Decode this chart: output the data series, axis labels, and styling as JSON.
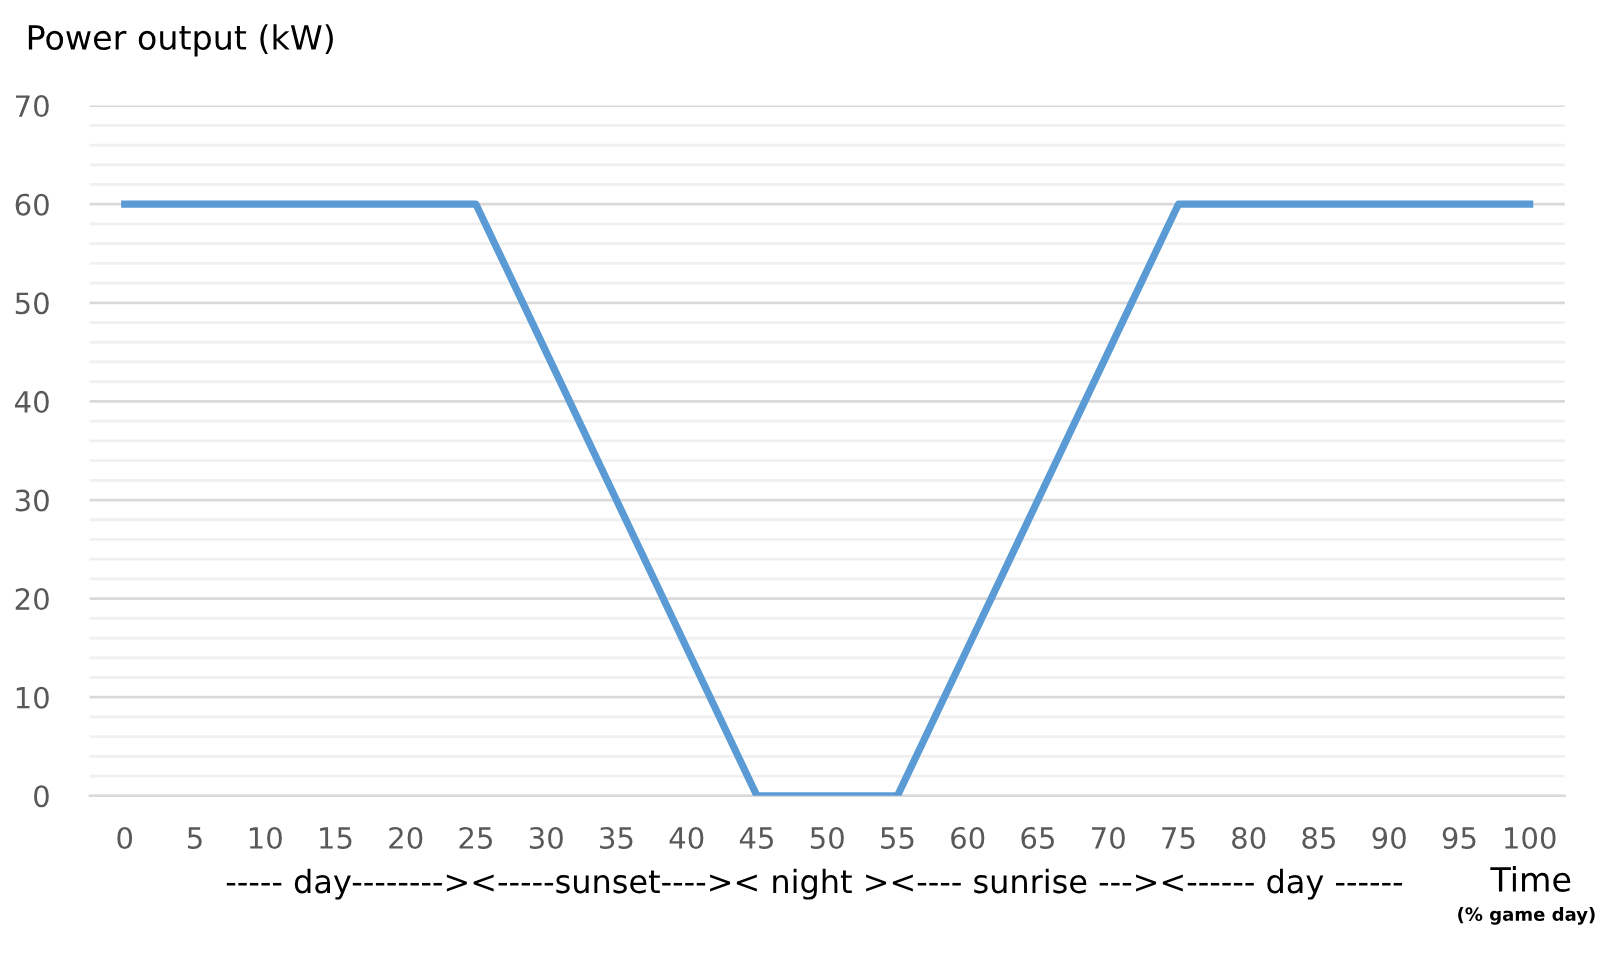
{
  "chart_data": {
    "type": "line",
    "title": "Power output (kW)",
    "xlabel": "Time",
    "annotations": [
      "----- day--------><-----sunset---->< night ><---- sunrise ---><------ day ------",
      "(% game day)"
    ],
    "categories": [
      "0",
      "5",
      "10",
      "15",
      "20",
      "25",
      "30",
      "35",
      "40",
      "45",
      "50",
      "55",
      "60",
      "65",
      "70",
      "75",
      "80",
      "85",
      "90",
      "95",
      "100"
    ],
    "series": [
      {
        "color": "#5b9bd5",
        "values": [
          60,
          60,
          60,
          60,
          60,
          60,
          45,
          30,
          15,
          0,
          0,
          0,
          15,
          30,
          45,
          60,
          60,
          60,
          60,
          60,
          60
        ]
      }
    ],
    "ylim": [
      0,
      70
    ],
    "yticks": [
      0,
      {
        "value": 2,
        "label": null
      },
      {
        "value": 4,
        "label": null
      },
      {
        "value": 6,
        "label": null
      },
      {
        "value": 8,
        "label": null
      },
      10,
      {
        "value": 12,
        "label": null
      },
      {
        "value": 14,
        "label": null
      },
      {
        "value": 16,
        "label": null
      },
      {
        "value": 18,
        "label": null
      },
      20,
      {
        "value": 22,
        "label": null
      },
      {
        "value": 24,
        "label": null
      },
      {
        "value": 26,
        "label": null
      },
      {
        "value": 28,
        "label": null
      },
      30,
      {
        "value": 32,
        "label": null
      },
      {
        "value": 34,
        "label": null
      },
      {
        "value": 36,
        "label": null
      },
      {
        "value": 38,
        "label": null
      },
      40,
      {
        "value": 42,
        "label": null
      },
      {
        "value": 44,
        "label": null
      },
      {
        "value": 46,
        "label": null
      },
      {
        "value": 48,
        "label": null
      },
      50,
      {
        "value": 52,
        "label": null
      },
      {
        "value": 54,
        "label": null
      },
      {
        "value": 56,
        "label": null
      },
      {
        "value": 58,
        "label": null
      },
      60,
      {
        "value": 62,
        "label": null
      },
      {
        "value": 64,
        "label": null
      },
      {
        "value": 66,
        "label": null
      },
      {
        "value": 68,
        "label": null
      },
      70
    ],
    "grid": "y",
    "line_style": "solid"
  }
}
